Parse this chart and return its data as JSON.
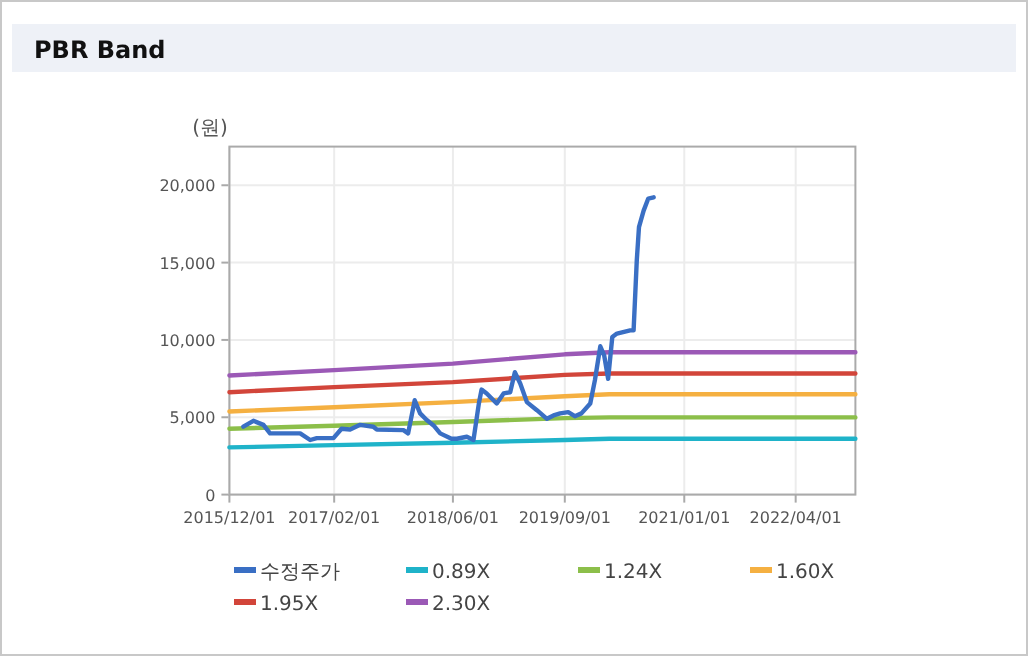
{
  "chart_data": {
    "type": "line",
    "title": "PBR Band",
    "ylabel": "(원)",
    "xlim": [
      "2015-12-01",
      "2022-12-01"
    ],
    "xticks": [
      {
        "value": "2015-12-01",
        "label": "2015/12/01"
      },
      {
        "value": "2017-02-01",
        "label": "2017/02/01"
      },
      {
        "value": "2018-06-01",
        "label": "2018/06/01"
      },
      {
        "value": "2019-09-01",
        "label": "2019/09/01"
      },
      {
        "value": "2021-01-01",
        "label": "2021/01/01"
      },
      {
        "value": "2022-04-01",
        "label": "2022/04/01"
      }
    ],
    "ylim": [
      0,
      22500
    ],
    "yticks": [
      0,
      {
        "value": 5000,
        "label": "5,000"
      },
      {
        "value": 10000,
        "label": "10,000"
      },
      {
        "value": 15000,
        "label": "15,000"
      },
      {
        "value": 20000,
        "label": "20,000"
      }
    ],
    "grid": true,
    "legend": "bottom",
    "series": [
      {
        "name": "수정주가",
        "color": "#3a6fc4",
        "x": [
          "2016-01-27",
          "2016-03-08",
          "2016-04-18",
          "2016-05-15",
          "2016-09-15",
          "2016-10-26",
          "2016-11-22",
          "2017-01-29",
          "2017-03-03",
          "2017-04-07",
          "2017-05-18",
          "2017-07-11",
          "2017-07-25",
          "2017-11-11",
          "2017-11-30",
          "2017-12-27",
          "2018-01-18",
          "2018-02-14",
          "2018-03-14",
          "2018-04-10",
          "2018-05-26",
          "2018-06-17",
          "2018-07-28",
          "2018-08-24",
          "2018-09-15",
          "2018-09-26",
          "2018-10-17",
          "2018-11-27",
          "2018-12-25",
          "2019-01-21",
          "2019-02-09",
          "2019-03-03",
          "2019-03-30",
          "2019-05-10",
          "2019-06-20",
          "2019-07-17",
          "2019-08-13",
          "2019-09-15",
          "2019-10-12",
          "2019-11-08",
          "2019-12-14",
          "2020-01-02",
          "2020-01-24",
          "2020-02-09",
          "2020-02-25",
          "2020-03-13",
          "2020-04-01",
          "2020-05-25",
          "2020-06-08",
          "2020-06-21",
          "2020-06-30",
          "2020-07-19",
          "2020-08-07",
          "2020-08-29"
        ],
        "values": [
          4390,
          4770,
          4510,
          3960,
          3960,
          3530,
          3650,
          3650,
          4260,
          4210,
          4510,
          4390,
          4210,
          4170,
          3960,
          6100,
          5250,
          4820,
          4470,
          3960,
          3610,
          3610,
          3740,
          3530,
          5890,
          6790,
          6540,
          5890,
          6540,
          6620,
          7910,
          7180,
          5980,
          5460,
          4900,
          5120,
          5250,
          5330,
          5070,
          5250,
          5890,
          7400,
          9590,
          8990,
          7480,
          10190,
          10410,
          10620,
          10620,
          15140,
          17290,
          18360,
          19140,
          19220
        ]
      },
      {
        "name": "0.89X",
        "color": "#1fb3c9",
        "x": [
          "2015-12-01",
          "2017-02-01",
          "2018-06-01",
          "2019-09-01",
          "2020-03-01",
          "2022-12-01"
        ],
        "values": [
          3050,
          3200,
          3350,
          3530,
          3610,
          3610
        ]
      },
      {
        "name": "1.24X",
        "color": "#8cbf4a",
        "x": [
          "2015-12-01",
          "2017-02-01",
          "2018-06-01",
          "2019-09-01",
          "2020-03-01",
          "2022-12-01"
        ],
        "values": [
          4260,
          4450,
          4690,
          4945,
          4990,
          4990
        ]
      },
      {
        "name": "1.60X",
        "color": "#f5b041",
        "x": [
          "2015-12-01",
          "2017-02-01",
          "2018-06-01",
          "2019-09-01",
          "2020-03-01",
          "2022-12-01"
        ],
        "values": [
          5375,
          5650,
          5980,
          6360,
          6490,
          6490
        ]
      },
      {
        "name": "1.95X",
        "color": "#d2453a",
        "x": [
          "2015-12-01",
          "2017-02-01",
          "2018-06-01",
          "2019-09-01",
          "2020-03-01",
          "2022-12-01"
        ],
        "values": [
          6620,
          6950,
          7270,
          7740,
          7830,
          7830
        ]
      },
      {
        "name": "2.30X",
        "color": "#9b59b6",
        "x": [
          "2015-12-01",
          "2017-02-01",
          "2018-06-01",
          "2019-09-01",
          "2020-03-01",
          "2022-12-01"
        ],
        "values": [
          7700,
          8050,
          8470,
          9070,
          9200,
          9200
        ]
      }
    ]
  }
}
